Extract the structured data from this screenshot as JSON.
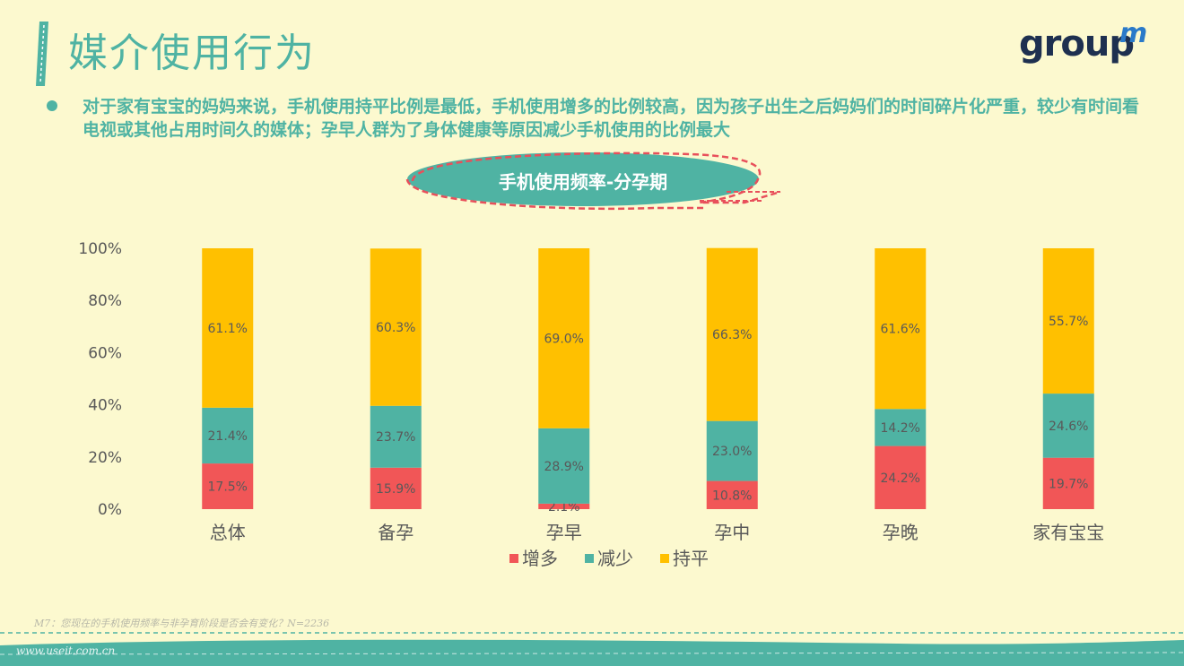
{
  "header": {
    "title": "媒介使用行为",
    "logo_text": "group",
    "logo_sup": "m"
  },
  "summary": {
    "text": "对于家有宝宝的妈妈来说，手机使用持平比例是最低，手机使用增多的比例较高，因为孩子出生之后妈妈们的时间碎片化严重，较少有时间看电视或其他占用时间久的媒体；孕早人群为了身体健康等原因减少手机使用的比例最大"
  },
  "footer": {
    "source_note": "M7：您现在的手机使用频率与非孕育阶段是否会有变化？N=2236",
    "watermark": "www.useit.com.cn"
  },
  "colors": {
    "background": "#fcf9cf",
    "accent": "#4fb3a3",
    "increase": "#f15657",
    "decrease": "#4fb3a3",
    "flat": "#ffc000",
    "title_outline": "#e8505b"
  },
  "chart_data": {
    "type": "bar",
    "stacked": true,
    "title": "手机使用频率-分孕期",
    "categories": [
      "总体",
      "备孕",
      "孕早",
      "孕中",
      "孕晚",
      "家有宝宝"
    ],
    "series": [
      {
        "name": "增多",
        "color": "#f15657",
        "values": [
          17.5,
          15.9,
          2.1,
          10.8,
          24.2,
          19.7
        ]
      },
      {
        "name": "减少",
        "color": "#4fb3a3",
        "values": [
          21.4,
          23.7,
          28.9,
          23.0,
          14.2,
          24.6
        ]
      },
      {
        "name": "持平",
        "color": "#ffc000",
        "values": [
          61.1,
          60.3,
          69.0,
          66.3,
          61.6,
          55.7
        ]
      }
    ],
    "ylim": [
      0,
      100
    ],
    "yticks": [
      "0%",
      "20%",
      "40%",
      "60%",
      "80%",
      "100%"
    ],
    "legend_position": "bottom",
    "grid": false
  }
}
